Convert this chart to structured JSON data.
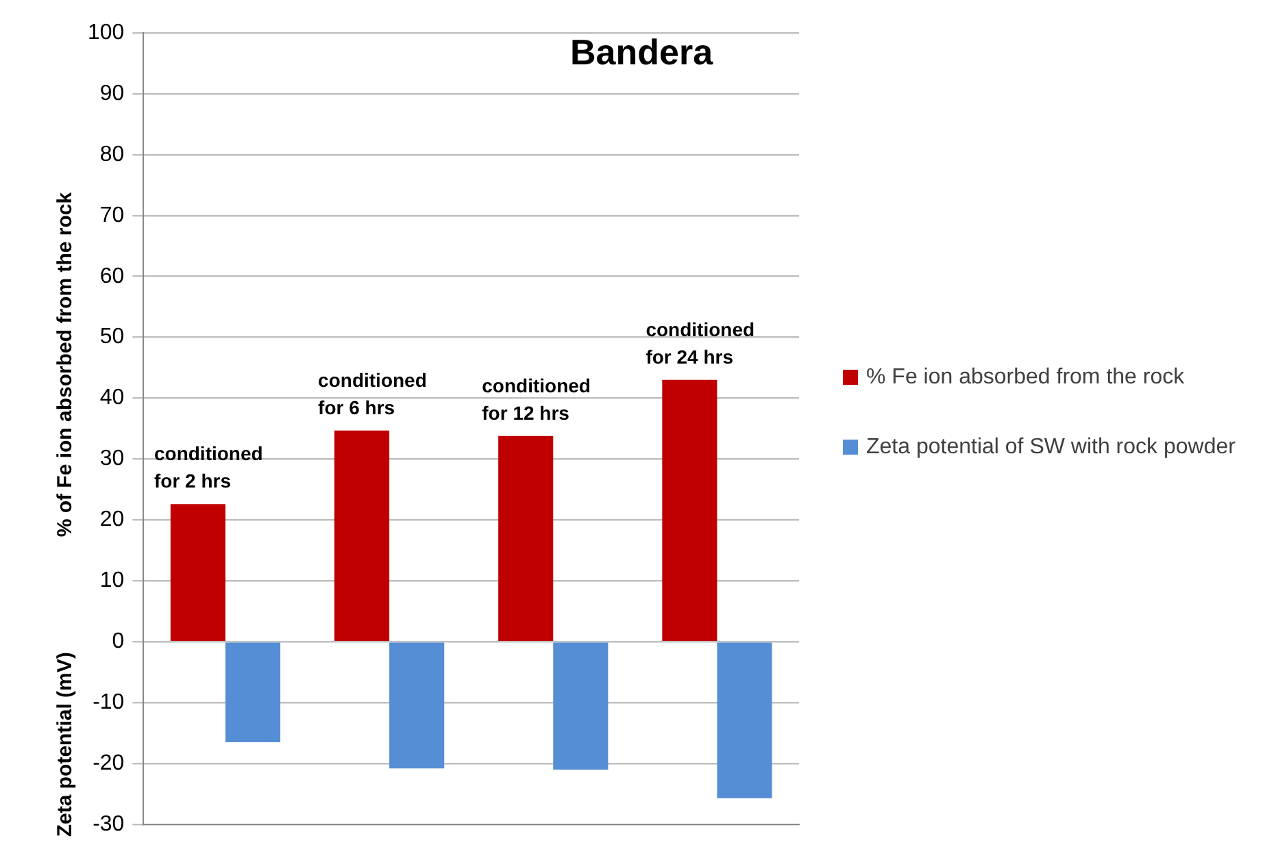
{
  "chart_data": {
    "type": "bar",
    "title": "Bandera",
    "ylabel": "% of Fe ion absorbed from the rock",
    "annotations": [
      "Zeta potential (mV)"
    ],
    "categories": [
      "conditioned for 2 hrs",
      "conditioned for 6 hrs",
      "conditioned for 12 hrs",
      "conditioned for 24 hrs"
    ],
    "series": [
      {
        "name": "% Fe ion absorbed from the rock",
        "color": "#c00000",
        "values": [
          22.6,
          34.7,
          33.8,
          43.0
        ]
      },
      {
        "name": "Zeta potential of SW with rock powder",
        "color": "#558ed5",
        "values": [
          -16.5,
          -20.8,
          -21.0,
          -25.7
        ]
      }
    ],
    "ylim": [
      -30,
      100
    ],
    "yticks": [
      -30,
      -20,
      -10,
      0,
      10,
      20,
      30,
      40,
      50,
      60,
      70,
      80,
      90,
      100
    ],
    "grid": "y",
    "legend": "right",
    "tick_labels": "y"
  }
}
